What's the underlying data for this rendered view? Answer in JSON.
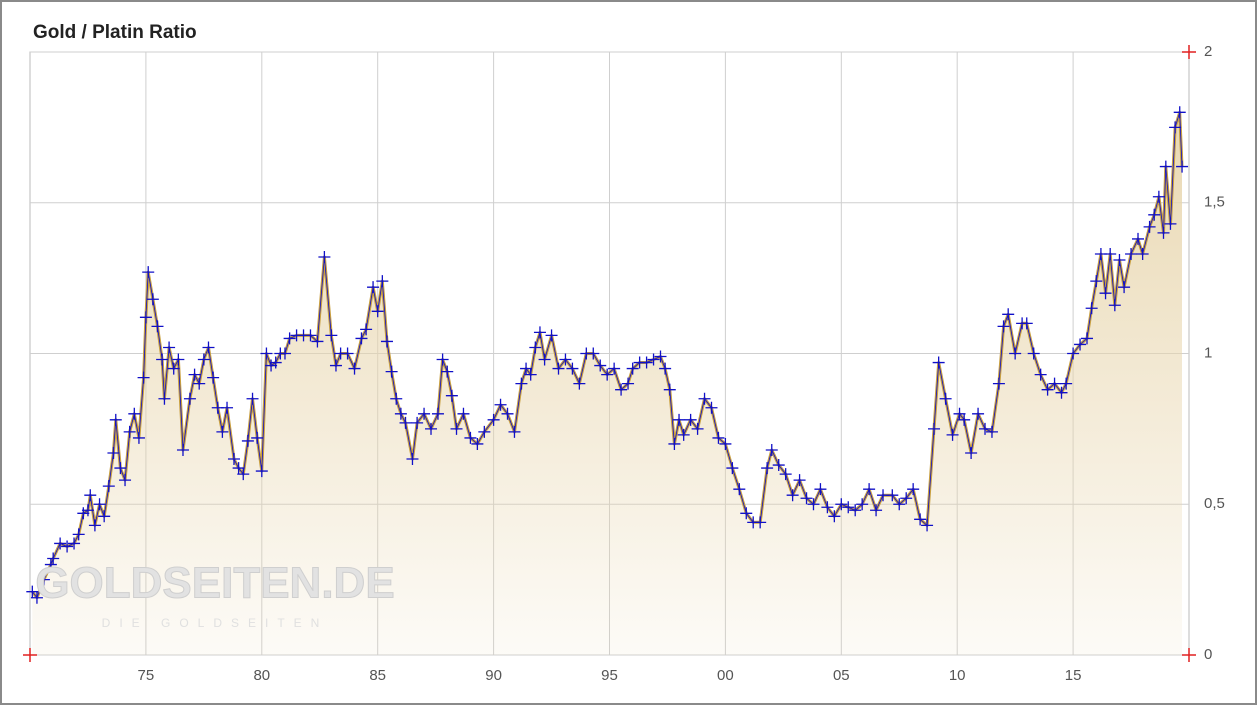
{
  "chart_data": {
    "type": "line",
    "title": "Gold / Platin Ratio",
    "watermark": "GOLDSEITEN.DE",
    "watermark_subtitle": "DIE GOLDSEITEN",
    "x": [
      1970.1,
      1970.3,
      1970.6,
      1970.9,
      1971.0,
      1971.3,
      1971.6,
      1971.9,
      1972.1,
      1972.3,
      1972.5,
      1972.6,
      1972.8,
      1973.0,
      1973.2,
      1973.4,
      1973.6,
      1973.7,
      1973.9,
      1974.1,
      1974.3,
      1974.5,
      1974.7,
      1974.9,
      1975.0,
      1975.1,
      1975.3,
      1975.5,
      1975.7,
      1975.8,
      1976.0,
      1976.2,
      1976.4,
      1976.6,
      1976.9,
      1977.1,
      1977.3,
      1977.5,
      1977.7,
      1977.9,
      1978.1,
      1978.3,
      1978.5,
      1978.8,
      1979.0,
      1979.2,
      1979.4,
      1979.6,
      1979.8,
      1980.0,
      1980.2,
      1980.4,
      1980.6,
      1980.8,
      1981.0,
      1981.2,
      1981.5,
      1981.8,
      1982.1,
      1982.4,
      1982.7,
      1983.0,
      1983.2,
      1983.4,
      1983.7,
      1984.0,
      1984.3,
      1984.5,
      1984.8,
      1985.0,
      1985.2,
      1985.4,
      1985.6,
      1985.8,
      1986.0,
      1986.2,
      1986.5,
      1986.7,
      1987.0,
      1987.3,
      1987.6,
      1987.8,
      1988.0,
      1988.2,
      1988.4,
      1988.7,
      1989.0,
      1989.3,
      1989.6,
      1990.0,
      1990.3,
      1990.6,
      1990.9,
      1991.2,
      1991.4,
      1991.6,
      1991.8,
      1992.0,
      1992.2,
      1992.5,
      1992.8,
      1993.1,
      1993.4,
      1993.7,
      1994.0,
      1994.3,
      1994.6,
      1994.9,
      1995.2,
      1995.5,
      1995.8,
      1996.0,
      1996.3,
      1996.6,
      1996.9,
      1997.2,
      1997.4,
      1997.6,
      1997.8,
      1998.0,
      1998.2,
      1998.5,
      1998.8,
      1999.1,
      1999.4,
      1999.7,
      2000.0,
      2000.3,
      2000.6,
      2000.9,
      2001.2,
      2001.5,
      2001.8,
      2002.0,
      2002.3,
      2002.6,
      2002.9,
      2003.2,
      2003.5,
      2003.8,
      2004.1,
      2004.4,
      2004.7,
      2005.0,
      2005.3,
      2005.6,
      2005.9,
      2006.2,
      2006.5,
      2006.8,
      2007.2,
      2007.5,
      2007.8,
      2008.1,
      2008.4,
      2008.7,
      2009.0,
      2009.2,
      2009.5,
      2009.8,
      2010.1,
      2010.3,
      2010.6,
      2010.9,
      2011.2,
      2011.5,
      2011.8,
      2012.0,
      2012.2,
      2012.5,
      2012.8,
      2013.0,
      2013.3,
      2013.6,
      2013.9,
      2014.2,
      2014.5,
      2014.7,
      2015.0,
      2015.3,
      2015.6,
      2015.8,
      2016.0,
      2016.2,
      2016.4,
      2016.6,
      2016.8,
      2017.0,
      2017.2,
      2017.5,
      2017.8,
      2018.0,
      2018.3,
      2018.5,
      2018.7,
      2018.9,
      2019.0,
      2019.2,
      2019.4,
      2019.6,
      2019.7
    ],
    "values": [
      0.21,
      0.19,
      0.25,
      0.3,
      0.32,
      0.37,
      0.36,
      0.37,
      0.4,
      0.47,
      0.48,
      0.53,
      0.43,
      0.5,
      0.46,
      0.56,
      0.67,
      0.78,
      0.62,
      0.58,
      0.74,
      0.8,
      0.72,
      0.92,
      1.12,
      1.27,
      1.18,
      1.09,
      0.98,
      0.85,
      1.02,
      0.95,
      0.98,
      0.68,
      0.85,
      0.93,
      0.9,
      0.98,
      1.02,
      0.92,
      0.82,
      0.74,
      0.82,
      0.65,
      0.62,
      0.6,
      0.71,
      0.85,
      0.72,
      0.61,
      1.0,
      0.96,
      0.97,
      1.0,
      1.0,
      1.05,
      1.06,
      1.06,
      1.06,
      1.04,
      1.32,
      1.06,
      0.96,
      1.0,
      1.0,
      0.95,
      1.05,
      1.08,
      1.22,
      1.14,
      1.24,
      1.04,
      0.94,
      0.85,
      0.8,
      0.77,
      0.65,
      0.77,
      0.8,
      0.75,
      0.8,
      0.98,
      0.94,
      0.86,
      0.75,
      0.8,
      0.72,
      0.7,
      0.74,
      0.78,
      0.83,
      0.8,
      0.74,
      0.9,
      0.95,
      0.93,
      1.02,
      1.07,
      0.98,
      1.06,
      0.95,
      0.98,
      0.95,
      0.9,
      1.0,
      1.0,
      0.96,
      0.93,
      0.95,
      0.88,
      0.9,
      0.95,
      0.97,
      0.97,
      0.98,
      0.99,
      0.95,
      0.88,
      0.7,
      0.78,
      0.73,
      0.78,
      0.75,
      0.85,
      0.82,
      0.72,
      0.7,
      0.62,
      0.55,
      0.47,
      0.44,
      0.44,
      0.62,
      0.68,
      0.63,
      0.6,
      0.53,
      0.58,
      0.52,
      0.5,
      0.55,
      0.49,
      0.46,
      0.5,
      0.49,
      0.48,
      0.5,
      0.55,
      0.48,
      0.53,
      0.53,
      0.5,
      0.52,
      0.55,
      0.45,
      0.43,
      0.75,
      0.97,
      0.85,
      0.73,
      0.8,
      0.78,
      0.67,
      0.8,
      0.75,
      0.74,
      0.9,
      1.09,
      1.13,
      1.0,
      1.1,
      1.1,
      1.0,
      0.93,
      0.88,
      0.9,
      0.87,
      0.9,
      1.0,
      1.03,
      1.05,
      1.15,
      1.24,
      1.33,
      1.2,
      1.33,
      1.16,
      1.31,
      1.22,
      1.33,
      1.38,
      1.33,
      1.42,
      1.46,
      1.52,
      1.4,
      1.62,
      1.43,
      1.75,
      1.8,
      1.62
    ],
    "line_color": "#c9a040",
    "marker_color": "#1010c8",
    "fill_color": "#e8d6ae",
    "xlim": [
      1970,
      2020
    ],
    "xticks": [
      {
        "value": 1975,
        "label": "75"
      },
      {
        "value": 1980,
        "label": "80"
      },
      {
        "value": 1985,
        "label": "85"
      },
      {
        "value": 1990,
        "label": "90"
      },
      {
        "value": 1995,
        "label": "95"
      },
      {
        "value": 2000,
        "label": "00"
      },
      {
        "value": 2005,
        "label": "05"
      },
      {
        "value": 2010,
        "label": "10"
      },
      {
        "value": 2015,
        "label": "15"
      }
    ],
    "ylim": [
      0,
      2
    ],
    "yticks": [
      0,
      {
        "value": 0.5,
        "label": "0,5"
      },
      1,
      {
        "value": 1.5,
        "label": "1,5"
      },
      2
    ],
    "grid": true
  }
}
